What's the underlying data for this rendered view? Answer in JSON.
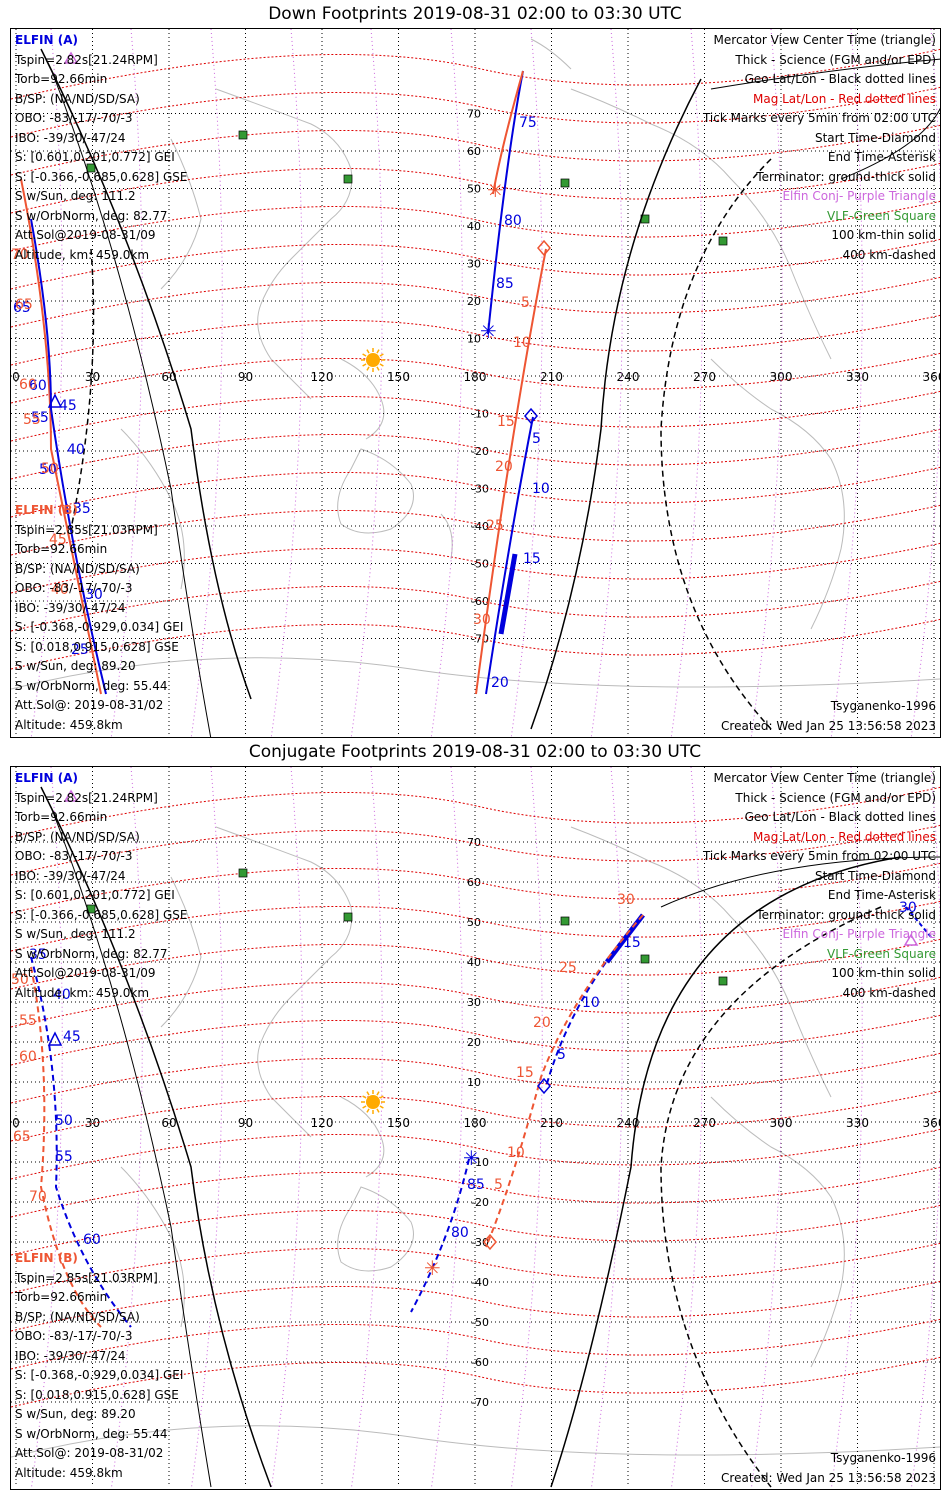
{
  "colors": {
    "sat_a": "#0000dd",
    "sat_b": "#ee5533",
    "geo_grid": "#000000",
    "mag_grid": "#dd0000",
    "elfin_conj": "#cc66dd",
    "vlf": "#339933",
    "coast": "#bbbbbb",
    "sun": "#ffaa00"
  },
  "axis": {
    "lon_ticks": [
      "0",
      "30",
      "60",
      "90",
      "120",
      "150",
      "180",
      "210",
      "240",
      "270",
      "300",
      "330",
      "360"
    ],
    "lat_ticks_up": [
      "70",
      "60",
      "50",
      "40",
      "30",
      "20",
      "10"
    ],
    "lat_ticks_down": [
      "-10",
      "-20",
      "-30",
      "-40",
      "-50",
      "-60",
      "-70"
    ]
  },
  "panels": [
    {
      "title": "Down Footprints 2019-08-31 02:00 to 03:30 UTC",
      "elfin_a": {
        "name": "ELFIN (A)",
        "lines": [
          "Tspin=2.82s[21.24RPM]",
          "Torb=92.66min",
          "B/SP: (NA/ND/SD/SA)",
          "OBO: -83/-17/-70/-3",
          "IBO: -39/30/-47/24",
          "S: [0.601,0.201,0.772] GEI",
          "S: [-0.366,-0.685,0.628] GSE",
          "S w/Sun, deg: 111.2",
          "S w/OrbNorm, deg: 82.77",
          "Att.Sol@2019-08-31/09",
          "Altitude, km: 459.0km"
        ]
      },
      "elfin_b": {
        "name": "ELFIN (B)",
        "lines": [
          "Tspin=2.85s[21.03RPM]",
          "Torb=92.66min",
          "B/SP: (NA/ND/SD/SA)",
          "OBO: -83/-17/-70/-3",
          "IBO: -39/30/-47/24",
          "S: [-0.368,-0.929,0.034] GEI",
          "S: [0.018,0.915,0.628] GSE",
          "S w/Sun, deg: 89.20",
          "S w/OrbNorm, deg: 55.44",
          "Att.Sol@: 2019-08-31/02",
          "Altitude: 459.8km"
        ]
      },
      "legend": {
        "center_time": "Mercator View Center Time (triangle)",
        "thick": "Thick - Science (FGM and/or EPD)",
        "geo": "Geo Lat/Lon - Black dotted lines",
        "mag": "Mag Lat/Lon - Red dotted lines",
        "ticks": "Tick Marks every 5min from 02:00 UTC",
        "start": "Start Time-Diamond",
        "end": "End Time-Asterisk",
        "terminator": "Terminator: ground-thick solid",
        "elfin_conj": "Elfin Conj- Purple Triangle",
        "vlf": "VLF-Green Square",
        "km100": "100 km-thin solid",
        "km400": "400 km-dashed"
      },
      "model": "Tsyganenko-1996",
      "created": "Created: Wed Jan 25 13:56:58 2023",
      "track_a_labels": [
        "75",
        "80",
        "85",
        "5",
        "10",
        "15",
        "20"
      ],
      "track_b_labels": [
        "5",
        "10",
        "15",
        "20",
        "25",
        "30"
      ],
      "left_a_labels": [
        "65",
        "60",
        "55",
        "50",
        "45",
        "40",
        "35",
        "30",
        "25"
      ],
      "left_b_labels": [
        "70",
        "65",
        "60",
        "55",
        "50",
        "45",
        "40"
      ]
    },
    {
      "title": "Conjugate Footprints 2019-08-31 02:00 to 03:30 UTC",
      "elfin_a": {
        "name": "ELFIN (A)",
        "lines": [
          "Tspin=2.82s[21.24RPM]",
          "Torb=92.66min",
          "B/SP: (NA/ND/SD/SA)",
          "OBO: -83/-17/-70/-3",
          "IBO: -39/30/-47/24",
          "S: [0.601,0.201,0.772] GEI",
          "S: [-0.366,-0.685,0.628] GSE",
          "S w/Sun, deg: 111.2",
          "S w/OrbNorm, deg: 82.77",
          "Att.Sol@2019-08-31/09",
          "Altitude, km: 459.0km"
        ]
      },
      "elfin_b": {
        "name": "ELFIN (B)",
        "lines": [
          "Tspin=2.85s[21.03RPM]",
          "Torb=92.66min",
          "B/SP: (NA/ND/SD/SA)",
          "OBO: -83/-17/-70/-3",
          "IBO: -39/30/-47/24",
          "S: [-0.368,-0.929,0.034] GEI",
          "S: [0.018,0.915,0.628] GSE",
          "S w/Sun, deg: 89.20",
          "S w/OrbNorm, deg: 55.44",
          "Att.Sol@: 2019-08-31/02",
          "Altitude: 459.8km"
        ]
      },
      "legend": {
        "center_time": "Mercator View Center Time (triangle)",
        "thick": "Thick - Science (FGM and/or EPD)",
        "geo": "Geo Lat/Lon - Black dotted lines",
        "mag": "Mag Lat/Lon - Red dotted lines",
        "ticks": "Tick Marks every 5min from 02:00 UTC",
        "start": "Start Time-Diamond",
        "end": "End Time-Asterisk",
        "terminator": "Terminator: ground-thick solid",
        "elfin_conj": "Elfin Conj- Purple Triangle",
        "vlf": "VLF-Green Square",
        "km100": "100 km-thin solid",
        "km400": "400 km-dashed"
      },
      "model": "Tsyganenko-1996",
      "created": "Created: Wed Jan 25 13:56:58 2023",
      "track_a_labels": [
        "5",
        "10",
        "15",
        "30",
        "85",
        "80"
      ],
      "track_b_labels": [
        "5",
        "10",
        "15",
        "20",
        "25",
        "30"
      ],
      "left_a_labels": [
        "35",
        "40",
        "45",
        "50",
        "55",
        "60"
      ],
      "left_b_labels": [
        "50",
        "55",
        "60",
        "65",
        "70"
      ]
    }
  ]
}
